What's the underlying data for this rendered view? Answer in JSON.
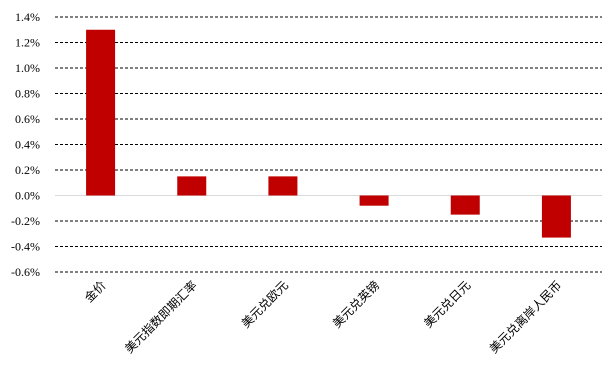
{
  "chart_data": {
    "type": "bar",
    "title": "",
    "xlabel": "",
    "ylabel": "",
    "categories": [
      "金价",
      "美元指数即期汇率",
      "美元兑欧元",
      "美元兑英镑",
      "美元兑日元",
      "美元兑离岸人民币"
    ],
    "values": [
      1.3,
      0.15,
      0.15,
      -0.08,
      -0.15,
      -0.33
    ],
    "ylim": [
      -0.6,
      1.4
    ],
    "yticks": [
      1.4,
      1.2,
      1.0,
      0.8,
      0.6,
      0.4,
      0.2,
      0.0,
      -0.2,
      -0.4,
      -0.6
    ],
    "ytick_labels": [
      "1.4%",
      "1.2%",
      "1.0%",
      "0.8%",
      "0.6%",
      "0.4%",
      "0.2%",
      "0.0%",
      "-0.2%",
      "-0.4%",
      "-0.6%"
    ],
    "bar_color": "#C00000",
    "grid": true,
    "grid_style": "dashed",
    "legend": "none"
  }
}
